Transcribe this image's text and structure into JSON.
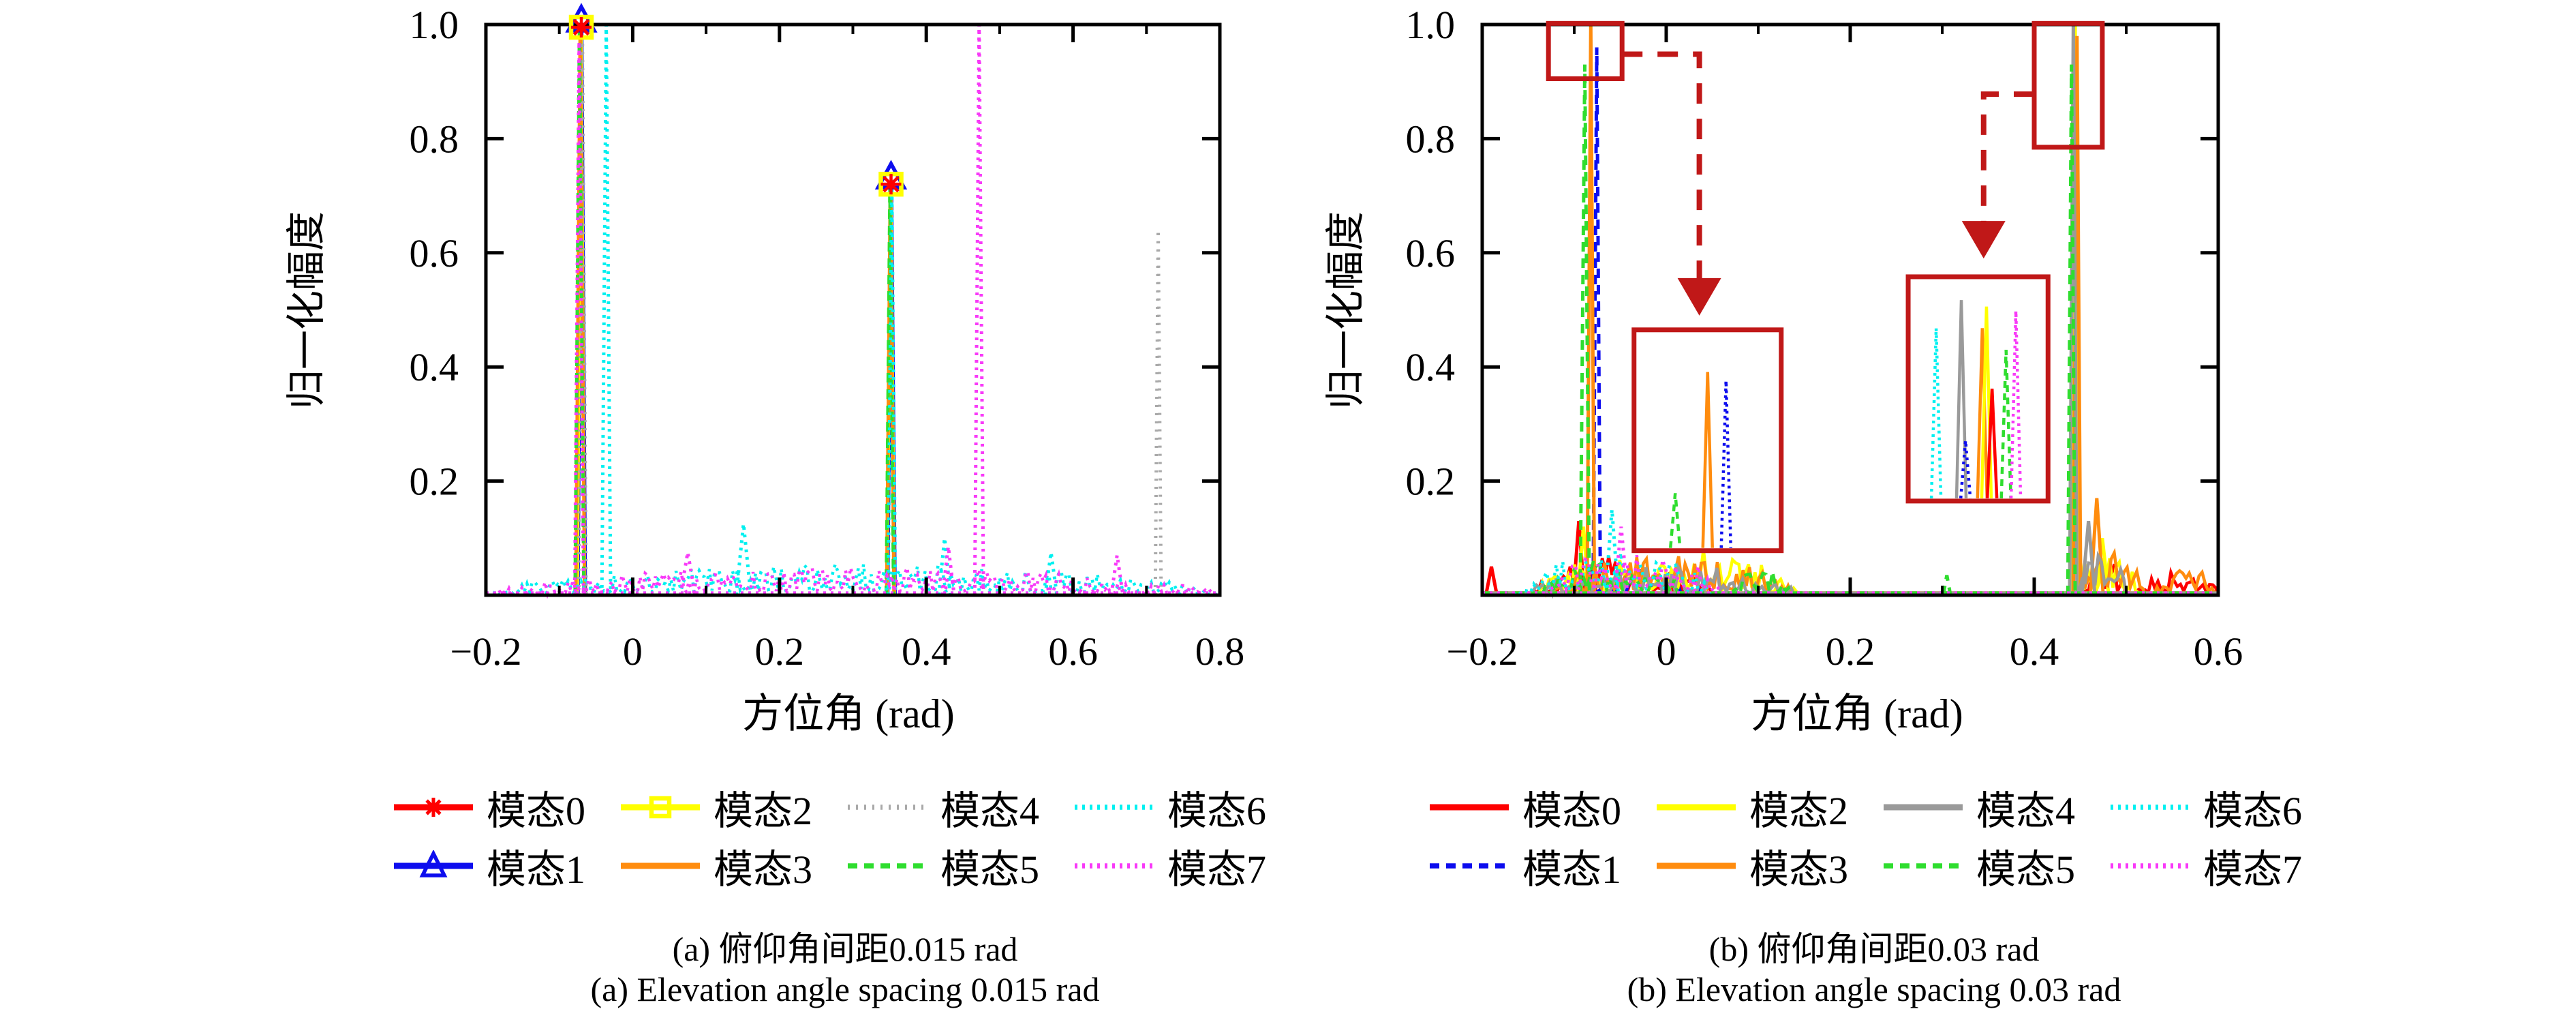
{
  "figure_bg": "#ffffff",
  "annotation_color": "#c01818",
  "axis_color": "#000000",
  "chart_data": [
    {
      "type": "line",
      "panel": "a",
      "xlabel": "方位角 (rad)",
      "ylabel": "归一化幅度",
      "caption_zh": "(a) 俯仰角间距0.015 rad",
      "caption_en": "(a) Elevation angle spacing 0.015 rad",
      "xlim": [
        -0.2,
        0.8
      ],
      "ylim": [
        0,
        1
      ],
      "grid": false,
      "legend_position": "below",
      "x_ticks": [
        {
          "v": -0.2,
          "label": "−0.2"
        },
        {
          "v": 0,
          "label": "0"
        },
        {
          "v": 0.2,
          "label": "0.2"
        },
        {
          "v": 0.4,
          "label": "0.4"
        },
        {
          "v": 0.6,
          "label": "0.6"
        },
        {
          "v": 0.8,
          "label": "0.8"
        }
      ],
      "y_ticks": [
        {
          "v": 0.2,
          "label": "0.2"
        },
        {
          "v": 0.4,
          "label": "0.4"
        },
        {
          "v": 0.6,
          "label": "0.6"
        },
        {
          "v": 0.8,
          "label": "0.8"
        },
        {
          "v": 1.0,
          "label": "1.0"
        }
      ],
      "minor_x_step": 0.1,
      "series": [
        {
          "name": "模态0",
          "color": "#fe0000",
          "dash": "solid",
          "marker": "star",
          "seed": 11,
          "baseline": false,
          "peaks": [
            [
              -0.07,
              1.0,
              0.005
            ],
            [
              0.352,
              0.725,
              0.005
            ]
          ],
          "noise": []
        },
        {
          "name": "模态1",
          "color": "#0d0dee",
          "dash": "solid",
          "marker": "triangle",
          "seed": 12,
          "baseline": false,
          "peaks": [
            [
              -0.0695,
              1.0,
              0.005
            ],
            [
              0.3525,
              0.725,
              0.005
            ]
          ],
          "noise": []
        },
        {
          "name": "模态2",
          "color": "#ffff00",
          "dash": "solid",
          "marker": "square",
          "seed": 13,
          "baseline": false,
          "peaks": [
            [
              -0.0705,
              1.0,
              0.005
            ],
            [
              0.3515,
              0.725,
              0.005
            ]
          ],
          "noise": []
        },
        {
          "name": "模态3",
          "color": "#ff8c0e",
          "dash": "solid",
          "marker": null,
          "seed": 14,
          "baseline": false,
          "peaks": [
            [
              -0.0715,
              1.0,
              0.006
            ],
            [
              0.351,
              0.72,
              0.005
            ]
          ],
          "noise": []
        },
        {
          "name": "模态4",
          "color": "#a9a9a9",
          "dash": "3 9",
          "marker": null,
          "seed": 15,
          "baseline": false,
          "peaks": [
            [
              -0.0685,
              0.985,
              0.005
            ],
            [
              0.716,
              0.64,
              0.004
            ]
          ],
          "noise": []
        },
        {
          "name": "模态5",
          "color": "#2fdd2f",
          "dash": "14 10",
          "marker": null,
          "seed": 16,
          "baseline": false,
          "peaks": [
            [
              -0.0725,
              1.0,
              0.006
            ],
            [
              0.3505,
              0.72,
              0.005
            ]
          ],
          "noise": []
        },
        {
          "name": "模态6",
          "color": "#00f0f0",
          "dash": "4 7",
          "marker": null,
          "seed": 17,
          "baseline": true,
          "peaks": [
            [
              -0.036,
              1.0,
              0.006
            ],
            [
              0.353,
              0.73,
              0.005
            ],
            [
              0.151,
              0.125,
              0.01
            ],
            [
              0.425,
              0.1,
              0.008
            ],
            [
              0.57,
              0.075,
              0.008
            ]
          ],
          "noise": [
            {
              "x0": -0.2,
              "x1": 0.8,
              "amp": 0.055
            }
          ]
        },
        {
          "name": "模态7",
          "color": "#f83af8",
          "dash": "4 7",
          "marker": null,
          "seed": 18,
          "baseline": true,
          "peaks": [
            [
              -0.073,
              0.97,
              0.006
            ],
            [
              0.472,
              1.0,
              0.006
            ],
            [
              0.075,
              0.075,
              0.01
            ],
            [
              0.43,
              0.085,
              0.008
            ],
            [
              0.66,
              0.07,
              0.008
            ]
          ],
          "noise": [
            {
              "x0": -0.2,
              "x1": 0.8,
              "amp": 0.05
            }
          ]
        }
      ],
      "marker_clusters": [
        {
          "x": -0.07,
          "y": 1.0,
          "markers": [
            {
              "type": "triangle",
              "color": "#0d0dee"
            },
            {
              "type": "square",
              "color": "#ffff00"
            },
            {
              "type": "star",
              "color": "#fe0000"
            }
          ]
        },
        {
          "x": 0.352,
          "y": 0.725,
          "markers": [
            {
              "type": "triangle",
              "color": "#0d0dee"
            },
            {
              "type": "square",
              "color": "#ffff00"
            },
            {
              "type": "star",
              "color": "#fe0000"
            }
          ]
        }
      ],
      "legend": [
        {
          "label": "模态0",
          "color": "#fe0000",
          "dash": "solid",
          "marker": "star"
        },
        {
          "label": "模态1",
          "color": "#0d0dee",
          "dash": "solid",
          "marker": "triangle"
        },
        {
          "label": "模态2",
          "color": "#ffff00",
          "dash": "solid",
          "marker": "square"
        },
        {
          "label": "模态3",
          "color": "#ff8c0e",
          "dash": "solid",
          "marker": null
        },
        {
          "label": "模态4",
          "color": "#a9a9a9",
          "dash": "3 9",
          "marker": null
        },
        {
          "label": "模态5",
          "color": "#2fdd2f",
          "dash": "14 10",
          "marker": null
        },
        {
          "label": "模态6",
          "color": "#00f0f0",
          "dash": "4 7",
          "marker": null
        },
        {
          "label": "模态7",
          "color": "#f83af8",
          "dash": "4 7",
          "marker": null
        }
      ],
      "annotations": null
    },
    {
      "type": "line",
      "panel": "b",
      "xlabel": "方位角 (rad)",
      "ylabel": "归一化幅度",
      "caption_zh": "(b) 俯仰角间距0.03 rad",
      "caption_en": "(b) Elevation angle spacing 0.03 rad",
      "xlim": [
        -0.2,
        0.6
      ],
      "ylim": [
        0,
        1
      ],
      "grid": false,
      "legend_position": "below",
      "x_ticks": [
        {
          "v": -0.2,
          "label": "−0.2"
        },
        {
          "v": 0,
          "label": "0"
        },
        {
          "v": 0.2,
          "label": "0.2"
        },
        {
          "v": 0.4,
          "label": "0.4"
        },
        {
          "v": 0.6,
          "label": "0.6"
        }
      ],
      "y_ticks": [
        {
          "v": 0.2,
          "label": "0.2"
        },
        {
          "v": 0.4,
          "label": "0.4"
        },
        {
          "v": 0.6,
          "label": "0.6"
        },
        {
          "v": 0.8,
          "label": "0.8"
        },
        {
          "v": 1.0,
          "label": "1.0"
        }
      ],
      "minor_x_step": 0.1,
      "series": [
        {
          "name": "模态0",
          "color": "#fe0000",
          "dash": "solid",
          "marker": null,
          "seed": 21,
          "baseline": true,
          "peaks": [
            [
              -0.19,
              0.05,
              0.006
            ],
            [
              -0.095,
              0.13,
              0.006
            ]
          ],
          "noise": [
            {
              "x0": -0.15,
              "x1": 0.05,
              "amp": 0.07
            },
            {
              "x0": 0.445,
              "x1": 0.5,
              "amp": 0.07
            },
            {
              "x0": 0.51,
              "x1": 0.6,
              "amp": 0.05
            }
          ]
        },
        {
          "name": "模态1",
          "color": "#0d0dee",
          "dash": "14 10",
          "marker": null,
          "seed": 22,
          "baseline": true,
          "peaks": [
            [
              -0.0755,
              0.96,
              0.004
            ]
          ],
          "noise": [
            {
              "x0": -0.1,
              "x1": 0.05,
              "amp": 0.035
            }
          ]
        },
        {
          "name": "模态2",
          "color": "#ffff00",
          "dash": "solid",
          "marker": null,
          "seed": 23,
          "baseline": true,
          "peaks": [
            [
              -0.09,
              0.12,
              0.006
            ],
            [
              0.4445,
              1.0,
              0.004
            ],
            [
              0.474,
              0.1,
              0.007
            ]
          ],
          "noise": [
            {
              "x0": -0.145,
              "x1": 0.145,
              "amp": 0.085
            },
            {
              "x0": 0.44,
              "x1": 0.515,
              "amp": 0.09
            }
          ]
        },
        {
          "name": "模态3",
          "color": "#ff8c0e",
          "dash": "solid",
          "marker": null,
          "seed": 24,
          "baseline": true,
          "peaks": [
            [
              -0.082,
              1.0,
              0.004
            ],
            [
              0.4465,
              0.98,
              0.004
            ],
            [
              0.468,
              0.17,
              0.007
            ]
          ],
          "noise": [
            {
              "x0": -0.13,
              "x1": 0.14,
              "amp": 0.075
            },
            {
              "x0": 0.445,
              "x1": 0.52,
              "amp": 0.12
            },
            {
              "x0": 0.53,
              "x1": 0.6,
              "amp": 0.05
            }
          ]
        },
        {
          "name": "模态4",
          "color": "#9a9a9a",
          "dash": "solid",
          "marker": null,
          "seed": 25,
          "baseline": true,
          "peaks": [
            [
              0.4425,
              1.0,
              0.004
            ],
            [
              0.459,
              0.13,
              0.007
            ]
          ],
          "noise": [
            {
              "x0": -0.155,
              "x1": 0.145,
              "amp": 0.055
            },
            {
              "x0": 0.445,
              "x1": 0.5,
              "amp": 0.1
            }
          ]
        },
        {
          "name": "模态5",
          "color": "#2fdd2f",
          "dash": "14 10",
          "marker": null,
          "seed": 26,
          "baseline": true,
          "peaks": [
            [
              -0.0885,
              0.93,
              0.005
            ],
            [
              0.4405,
              0.93,
              0.004
            ],
            [
              0.305,
              0.035,
              0.004
            ]
          ],
          "noise": [
            {
              "x0": -0.135,
              "x1": 0.02,
              "amp": 0.065
            },
            {
              "x0": 0.07,
              "x1": 0.135,
              "amp": 0.05
            }
          ]
        },
        {
          "name": "模态6",
          "color": "#00f0f0",
          "dash": "4 7",
          "marker": null,
          "seed": 27,
          "baseline": true,
          "peaks": [
            [
              -0.059,
              0.15,
              0.007
            ]
          ],
          "noise": [
            {
              "x0": -0.165,
              "x1": 0.05,
              "amp": 0.08
            }
          ]
        },
        {
          "name": "模态7",
          "color": "#f83af8",
          "dash": "4 7",
          "marker": null,
          "seed": 28,
          "baseline": true,
          "peaks": [
            [
              -0.049,
              0.12,
              0.007
            ]
          ],
          "noise": [
            {
              "x0": -0.13,
              "x1": 0.06,
              "amp": 0.085
            }
          ]
        }
      ],
      "marker_clusters": [],
      "legend": [
        {
          "label": "模态0",
          "color": "#fe0000",
          "dash": "solid",
          "marker": null
        },
        {
          "label": "模态1",
          "color": "#0d0dee",
          "dash": "14 10",
          "marker": null
        },
        {
          "label": "模态2",
          "color": "#ffff00",
          "dash": "solid",
          "marker": null
        },
        {
          "label": "模态3",
          "color": "#ff8c0e",
          "dash": "solid",
          "marker": null
        },
        {
          "label": "模态4",
          "color": "#9a9a9a",
          "dash": "solid",
          "marker": null
        },
        {
          "label": "模态5",
          "color": "#2fdd2f",
          "dash": "14 10",
          "marker": null
        },
        {
          "label": "模态6",
          "color": "#00f0f0",
          "dash": "4 7",
          "marker": null
        },
        {
          "label": "模态7",
          "color": "#f83af8",
          "dash": "4 7",
          "marker": null
        }
      ],
      "annotations": {
        "zoom_boxes": [
          {
            "x0": -0.128,
            "y0": 0.905,
            "x1": -0.048,
            "y1": 1.002
          },
          {
            "x0": 0.4,
            "y0": 0.785,
            "x1": 0.474,
            "y1": 1.002
          }
        ],
        "arrows": [
          {
            "pts": [
              [
                -0.048,
                0.948
              ],
              [
                0.036,
                0.948
              ],
              [
                0.036,
                0.545
              ]
            ],
            "tip_y": 0.49
          },
          {
            "pts": [
              [
                0.4,
                0.878
              ],
              [
                0.345,
                0.878
              ],
              [
                0.345,
                0.645
              ]
            ],
            "tip_y": 0.59
          }
        ],
        "insets": [
          {
            "x0": -0.035,
            "y0": 0.078,
            "x1": 0.125,
            "y1": 0.465,
            "spikes": [
              {
                "p": 0.28,
                "h": 0.27,
                "color": "#2fdd2f",
                "dash": "10 8"
              },
              {
                "p": 0.5,
                "h": 0.84,
                "color": "#ff8c0e",
                "dash": "solid"
              },
              {
                "p": 0.625,
                "h": 0.8,
                "color": "#0d0dee",
                "dash": "4 6"
              }
            ]
          },
          {
            "x0": 0.263,
            "y0": 0.165,
            "x1": 0.415,
            "y1": 0.558,
            "spikes": [
              {
                "p": 0.2,
                "h": 0.8,
                "color": "#00f0f0",
                "dash": "4 6"
              },
              {
                "p": 0.38,
                "h": 0.93,
                "color": "#9a9a9a",
                "dash": "solid"
              },
              {
                "p": 0.41,
                "h": 0.28,
                "color": "#0d0dee",
                "dash": "4 6"
              },
              {
                "p": 0.53,
                "h": 0.8,
                "color": "#ff8c0e",
                "dash": "solid"
              },
              {
                "p": 0.56,
                "h": 0.9,
                "color": "#ffff00",
                "dash": "solid"
              },
              {
                "p": 0.6,
                "h": 0.52,
                "color": "#fe0000",
                "dash": "solid"
              },
              {
                "p": 0.7,
                "h": 0.7,
                "color": "#2fdd2f",
                "dash": "10 8"
              },
              {
                "p": 0.77,
                "h": 0.88,
                "color": "#f83af8",
                "dash": "4 6"
              }
            ]
          }
        ]
      }
    }
  ]
}
